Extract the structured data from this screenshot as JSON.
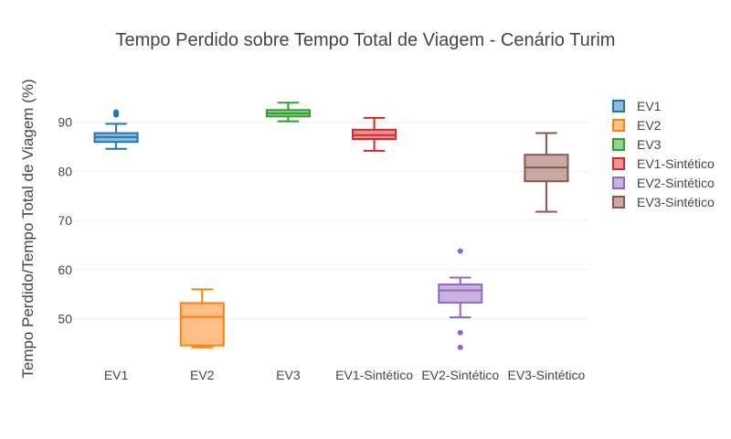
{
  "chart_data": {
    "type": "box",
    "title": "Tempo Perdido sobre Tempo Total de Viagem - Cenário Turim",
    "xlabel": "",
    "ylabel": "Tempo Perdido/Tempo Total de Viagem (%)",
    "ylim": [
      41,
      100
    ],
    "yticks": [
      50,
      60,
      70,
      80,
      90
    ],
    "grid": true,
    "legend_position": "right",
    "series": [
      {
        "name": "EV1",
        "color": "#1f77b4",
        "lowerfence": 84.6,
        "q1": 86.0,
        "median": 87.0,
        "q3": 87.8,
        "upperfence": 89.7,
        "outliers": [
          91.5,
          91.8,
          92.1
        ]
      },
      {
        "name": "EV2",
        "color": "#ff7f0e",
        "lowerfence": 44.2,
        "q1": 44.6,
        "median": 50.4,
        "q3": 53.2,
        "upperfence": 56.0,
        "outliers": []
      },
      {
        "name": "EV3",
        "color": "#2ca02c",
        "lowerfence": 90.2,
        "q1": 91.2,
        "median": 91.8,
        "q3": 92.5,
        "upperfence": 94.0,
        "outliers": []
      },
      {
        "name": "EV1-Sintético",
        "color": "#d62728",
        "lowerfence": 84.2,
        "q1": 86.6,
        "median": 87.4,
        "q3": 88.5,
        "upperfence": 90.9,
        "outliers": []
      },
      {
        "name": "EV2-Sintético",
        "color": "#9467bd",
        "lowerfence": 50.3,
        "q1": 53.3,
        "median": 55.8,
        "q3": 57.0,
        "upperfence": 58.4,
        "outliers": [
          63.8,
          47.2,
          44.2
        ]
      },
      {
        "name": "EV3-Sintético",
        "color": "#8c564b",
        "lowerfence": 71.8,
        "q1": 78.0,
        "median": 80.8,
        "q3": 83.4,
        "upperfence": 87.8,
        "outliers": []
      }
    ]
  }
}
